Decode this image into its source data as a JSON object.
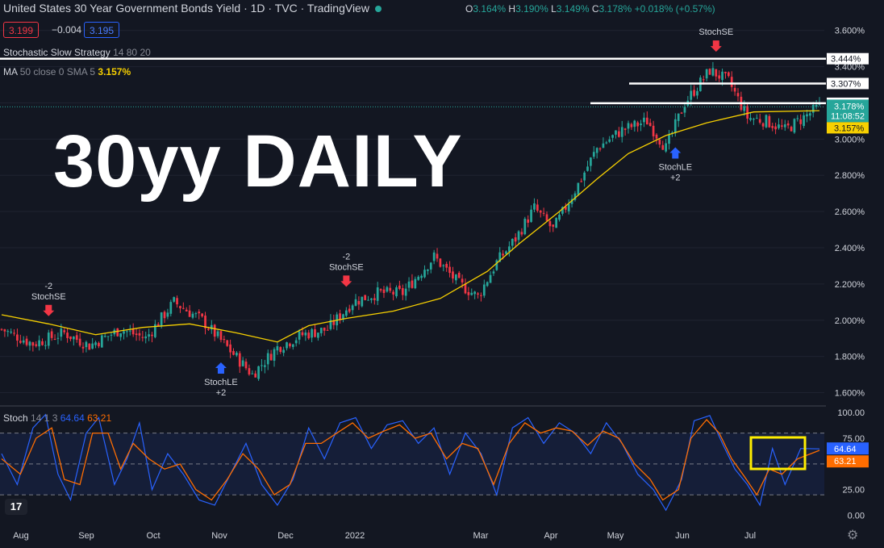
{
  "header": {
    "title": "United States 30 Year Government Bonds Yield · 1D · TVC · TradingView",
    "ohlc": {
      "o_label": "O",
      "o": "3.164%",
      "h_label": "H",
      "h": "3.190%",
      "l_label": "L",
      "l": "3.149%",
      "c_label": "C",
      "c": "3.178%",
      "chg": "+0.018% (+0.57%)"
    },
    "sell_price": "3.199",
    "spread": "−0.004",
    "buy_price": "3.195"
  },
  "legends": {
    "strategy": "Stochastic Slow Strategy",
    "strategy_params": "14 80 20",
    "ma": "MA",
    "ma_params": "50 close 0 SMA 5",
    "ma_value": "3.157%"
  },
  "overlay_text": "30yy DAILY",
  "stoch": {
    "name": "Stoch",
    "params": "14 1 3",
    "k_value": "64.64",
    "d_value": "63.21"
  },
  "logo_text": "17",
  "gear_icon": "⚙",
  "colors": {
    "bg": "#131722",
    "up": "#26a69a",
    "down": "#f23645",
    "ma": "#f7d000",
    "k": "#2962ff",
    "d": "#ff6d00",
    "highlight": "#ffee00"
  },
  "chart_data": [
    {
      "type": "candlestick",
      "title": "United States 30 Year Government Bonds Yield",
      "y_axis_ticks": [
        "3.600%",
        "3.400%",
        "3.200%",
        "3.000%",
        "2.800%",
        "2.600%",
        "2.400%",
        "2.200%",
        "2.000%",
        "1.800%",
        "1.600%"
      ],
      "y_axis_ticks_values": [
        3.6,
        3.4,
        3.2,
        3.0,
        2.8,
        2.6,
        2.4,
        2.2,
        2.0,
        1.8,
        1.6
      ],
      "ylim": [
        1.54,
        3.67
      ],
      "x_axis_ticks": [
        "Aug",
        "Sep",
        "Oct",
        "Nov",
        "Dec",
        "2022",
        "Mar",
        "Apr",
        "May",
        "Jun",
        "Jul"
      ],
      "close_path": [
        [
          0,
          1.95
        ],
        [
          10,
          1.87
        ],
        [
          20,
          1.93
        ],
        [
          28,
          1.86
        ],
        [
          38,
          1.95
        ],
        [
          46,
          1.9
        ],
        [
          55,
          2.1
        ],
        [
          64,
          2.0
        ],
        [
          72,
          1.85
        ],
        [
          80,
          1.7
        ],
        [
          88,
          1.85
        ],
        [
          96,
          1.92
        ],
        [
          104,
          1.95
        ],
        [
          112,
          2.1
        ],
        [
          120,
          2.15
        ],
        [
          128,
          2.15
        ],
        [
          138,
          2.35
        ],
        [
          146,
          2.2
        ],
        [
          152,
          2.13
        ],
        [
          158,
          2.32
        ],
        [
          164,
          2.45
        ],
        [
          170,
          2.62
        ],
        [
          176,
          2.5
        ],
        [
          184,
          2.75
        ],
        [
          190,
          2.95
        ],
        [
          198,
          3.05
        ],
        [
          206,
          3.1
        ],
        [
          212,
          2.95
        ],
        [
          218,
          3.2
        ],
        [
          226,
          3.38
        ],
        [
          232,
          3.32
        ],
        [
          238,
          3.12
        ],
        [
          244,
          3.1
        ],
        [
          250,
          3.05
        ],
        [
          256,
          3.12
        ],
        [
          261,
          3.18
        ]
      ],
      "total_bars": 262,
      "ma_path": [
        [
          0,
          2.03
        ],
        [
          15,
          1.98
        ],
        [
          30,
          1.92
        ],
        [
          45,
          1.96
        ],
        [
          60,
          1.98
        ],
        [
          75,
          1.93
        ],
        [
          88,
          1.88
        ],
        [
          98,
          1.97
        ],
        [
          110,
          2.01
        ],
        [
          125,
          2.05
        ],
        [
          140,
          2.12
        ],
        [
          155,
          2.27
        ],
        [
          165,
          2.42
        ],
        [
          178,
          2.6
        ],
        [
          190,
          2.78
        ],
        [
          200,
          2.92
        ],
        [
          212,
          3.02
        ],
        [
          225,
          3.09
        ],
        [
          240,
          3.15
        ],
        [
          261,
          3.157
        ]
      ],
      "horizontal_levels": [
        {
          "value": 3.444,
          "label": "3.444%"
        },
        {
          "value": 3.307,
          "label": "3.307%"
        },
        {
          "value": 3.198,
          "label": "3.198%"
        }
      ],
      "last_price_label": "3.178%",
      "countdown_label": "11:08:52",
      "ma_label": "3.157%",
      "signals": [
        {
          "bar": 15,
          "kind": "sell",
          "qty": "-2",
          "label": "StochSE"
        },
        {
          "bar": 70,
          "kind": "buy",
          "qty": "+2",
          "label": "StochLE"
        },
        {
          "bar": 110,
          "kind": "sell",
          "qty": "-2",
          "label": "StochSE"
        },
        {
          "bar": 215,
          "kind": "buy",
          "qty": "+2",
          "label": "StochLE"
        },
        {
          "bar": 228,
          "kind": "sell",
          "qty": "",
          "label": "StochSE"
        }
      ]
    },
    {
      "type": "line",
      "title": "Stoch 14 1 3",
      "y_axis_ticks": [
        "100.00",
        "75.00",
        "25.00",
        "0.00"
      ],
      "y_axis_ticks_values": [
        100,
        75,
        25,
        0
      ],
      "bands": [
        80,
        50,
        20
      ],
      "ylim": [
        -5,
        104
      ],
      "series": [
        {
          "name": "%K",
          "last": 64.64
        },
        {
          "name": "%D",
          "last": 63.21
        }
      ],
      "k_path": [
        [
          0,
          60
        ],
        [
          5,
          30
        ],
        [
          10,
          85
        ],
        [
          14,
          98
        ],
        [
          18,
          40
        ],
        [
          22,
          15
        ],
        [
          27,
          80
        ],
        [
          31,
          95
        ],
        [
          36,
          30
        ],
        [
          40,
          55
        ],
        [
          44,
          90
        ],
        [
          48,
          25
        ],
        [
          53,
          60
        ],
        [
          58,
          40
        ],
        [
          63,
          15
        ],
        [
          68,
          10
        ],
        [
          73,
          40
        ],
        [
          78,
          70
        ],
        [
          83,
          30
        ],
        [
          88,
          10
        ],
        [
          93,
          35
        ],
        [
          98,
          85
        ],
        [
          103,
          55
        ],
        [
          108,
          90
        ],
        [
          113,
          95
        ],
        [
          118,
          65
        ],
        [
          123,
          88
        ],
        [
          128,
          92
        ],
        [
          133,
          70
        ],
        [
          138,
          85
        ],
        [
          143,
          40
        ],
        [
          148,
          80
        ],
        [
          153,
          60
        ],
        [
          158,
          20
        ],
        [
          163,
          85
        ],
        [
          168,
          95
        ],
        [
          173,
          70
        ],
        [
          178,
          90
        ],
        [
          183,
          80
        ],
        [
          188,
          60
        ],
        [
          193,
          90
        ],
        [
          198,
          70
        ],
        [
          203,
          40
        ],
        [
          208,
          25
        ],
        [
          212,
          5
        ],
        [
          217,
          35
        ],
        [
          221,
          92
        ],
        [
          226,
          97
        ],
        [
          230,
          70
        ],
        [
          234,
          45
        ],
        [
          238,
          30
        ],
        [
          242,
          10
        ],
        [
          246,
          65
        ],
        [
          250,
          30
        ],
        [
          255,
          65
        ],
        [
          261,
          64.64
        ]
      ],
      "d_path": [
        [
          0,
          55
        ],
        [
          6,
          40
        ],
        [
          11,
          75
        ],
        [
          16,
          85
        ],
        [
          20,
          35
        ],
        [
          25,
          30
        ],
        [
          29,
          80
        ],
        [
          34,
          80
        ],
        [
          38,
          45
        ],
        [
          42,
          70
        ],
        [
          47,
          55
        ],
        [
          52,
          45
        ],
        [
          57,
          50
        ],
        [
          62,
          25
        ],
        [
          67,
          15
        ],
        [
          72,
          35
        ],
        [
          77,
          60
        ],
        [
          82,
          45
        ],
        [
          87,
          20
        ],
        [
          92,
          30
        ],
        [
          97,
          70
        ],
        [
          102,
          70
        ],
        [
          107,
          80
        ],
        [
          112,
          90
        ],
        [
          117,
          75
        ],
        [
          122,
          82
        ],
        [
          127,
          88
        ],
        [
          132,
          75
        ],
        [
          137,
          80
        ],
        [
          142,
          55
        ],
        [
          147,
          70
        ],
        [
          152,
          65
        ],
        [
          157,
          30
        ],
        [
          162,
          70
        ],
        [
          167,
          90
        ],
        [
          172,
          80
        ],
        [
          177,
          85
        ],
        [
          182,
          82
        ],
        [
          187,
          68
        ],
        [
          192,
          82
        ],
        [
          197,
          75
        ],
        [
          202,
          50
        ],
        [
          207,
          35
        ],
        [
          211,
          15
        ],
        [
          216,
          25
        ],
        [
          220,
          75
        ],
        [
          225,
          93
        ],
        [
          229,
          80
        ],
        [
          233,
          55
        ],
        [
          237,
          38
        ],
        [
          241,
          20
        ],
        [
          245,
          45
        ],
        [
          249,
          40
        ],
        [
          254,
          55
        ],
        [
          261,
          63.21
        ]
      ]
    }
  ]
}
